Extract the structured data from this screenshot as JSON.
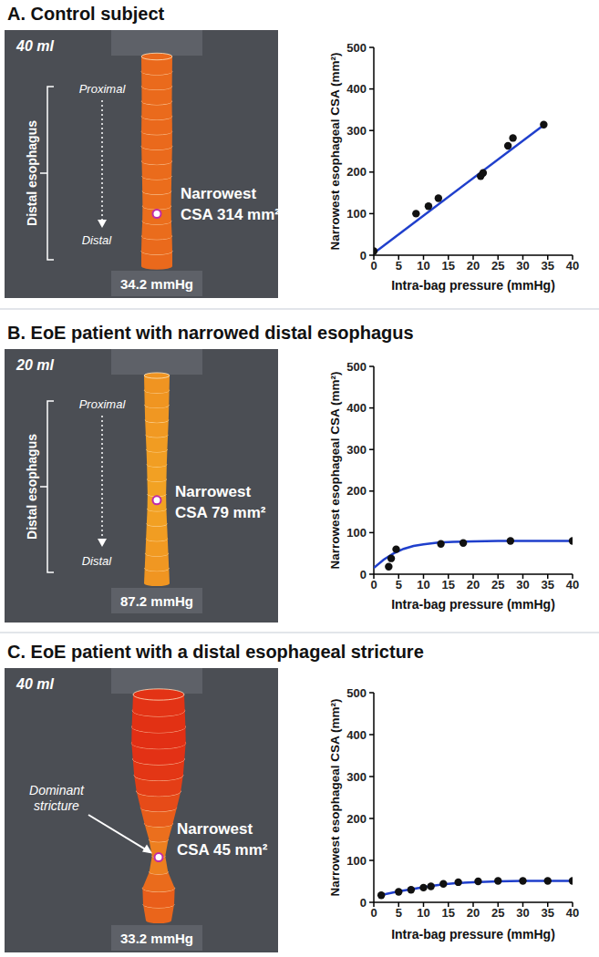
{
  "chart_data": [
    {
      "type": "scatter",
      "title": "A. Control subject",
      "x_label": "Intra-bag pressure (mmHg)",
      "y_label": "Narrowest esophageal CSA (mm²)",
      "xlim": [
        0,
        40
      ],
      "xticks": [
        0,
        5,
        10,
        15,
        20,
        25,
        30,
        35,
        40
      ],
      "ylim": [
        0,
        500
      ],
      "yticks": [
        0,
        100,
        200,
        300,
        400,
        500
      ],
      "grid": false,
      "series": [
        {
          "type": "scatter",
          "marker": "circle",
          "color": "#111111",
          "x": [
            0,
            8.5,
            11,
            13,
            21.5,
            22,
            27,
            28,
            34.2
          ],
          "values": [
            10,
            100,
            118,
            137,
            190,
            198,
            263,
            282,
            314
          ]
        },
        {
          "type": "line",
          "line_style": "solid",
          "color": "#1f3fcc",
          "x": [
            0,
            34.5
          ],
          "values": [
            5,
            316
          ]
        }
      ],
      "annotations": {
        "volume": "40 ml",
        "pressure": "34.2 mmHg",
        "narrowest": "Narrowest CSA 314 mm²",
        "region": "Distal esophagus",
        "proximal": "Proximal",
        "distal": "Distal"
      }
    },
    {
      "type": "scatter",
      "title": "B. EoE patient with narrowed distal esophagus",
      "x_label": "Intra-bag pressure (mmHg)",
      "y_label": "Narrowest esophageal CSA (mm²)",
      "xlim": [
        0,
        40
      ],
      "xticks": [
        0,
        5,
        10,
        15,
        20,
        25,
        30,
        35,
        40
      ],
      "ylim": [
        0,
        500
      ],
      "yticks": [
        0,
        100,
        200,
        300,
        400,
        500
      ],
      "grid": false,
      "series": [
        {
          "type": "scatter",
          "marker": "circle",
          "color": "#111111",
          "x": [
            3,
            3.5,
            4.5,
            13.5,
            18,
            27.5,
            40
          ],
          "values": [
            18,
            38,
            60,
            73,
            75,
            80,
            80
          ]
        },
        {
          "type": "line",
          "line_style": "solid",
          "color": "#1f3fcc",
          "x": [
            0,
            2,
            4,
            6,
            8,
            10,
            13,
            16,
            20,
            25,
            30,
            35,
            40
          ],
          "values": [
            15,
            35,
            50,
            61,
            68,
            72,
            76,
            78,
            79,
            80,
            80,
            80,
            80
          ]
        }
      ],
      "annotations": {
        "volume": "20 ml",
        "pressure": "87.2 mmHg",
        "narrowest": "Narrowest CSA 79 mm²",
        "region": "Distal esophagus",
        "proximal": "Proximal",
        "distal": "Distal"
      }
    },
    {
      "type": "scatter",
      "title": "C. EoE patient with a distal esophageal stricture",
      "x_label": "Intra-bag pressure (mmHg)",
      "y_label": "Narrowest esophageal CSA (mm²)",
      "xlim": [
        0,
        40
      ],
      "xticks": [
        0,
        5,
        10,
        15,
        20,
        25,
        30,
        35,
        40
      ],
      "ylim": [
        0,
        500
      ],
      "yticks": [
        0,
        100,
        200,
        300,
        400,
        500
      ],
      "grid": false,
      "series": [
        {
          "type": "scatter",
          "marker": "circle",
          "color": "#111111",
          "x": [
            1.5,
            5,
            7.5,
            10,
            11.5,
            14,
            17,
            21,
            25,
            30,
            35,
            40
          ],
          "values": [
            17,
            25,
            30,
            35,
            38,
            44,
            48,
            50,
            51,
            51,
            51,
            51
          ]
        },
        {
          "type": "line",
          "line_style": "solid",
          "color": "#1f3fcc",
          "x": [
            1,
            3,
            5,
            8,
            11,
            14,
            17,
            20,
            25,
            30,
            35,
            40
          ],
          "values": [
            16,
            21,
            26,
            32,
            38,
            43,
            46,
            48,
            50,
            51,
            51,
            51
          ]
        }
      ],
      "annotations": {
        "volume": "40 ml",
        "pressure": "33.2 mmHg",
        "narrowest": "Narrowest CSA 45 mm²",
        "stricture": "Dominant stricture"
      }
    }
  ]
}
